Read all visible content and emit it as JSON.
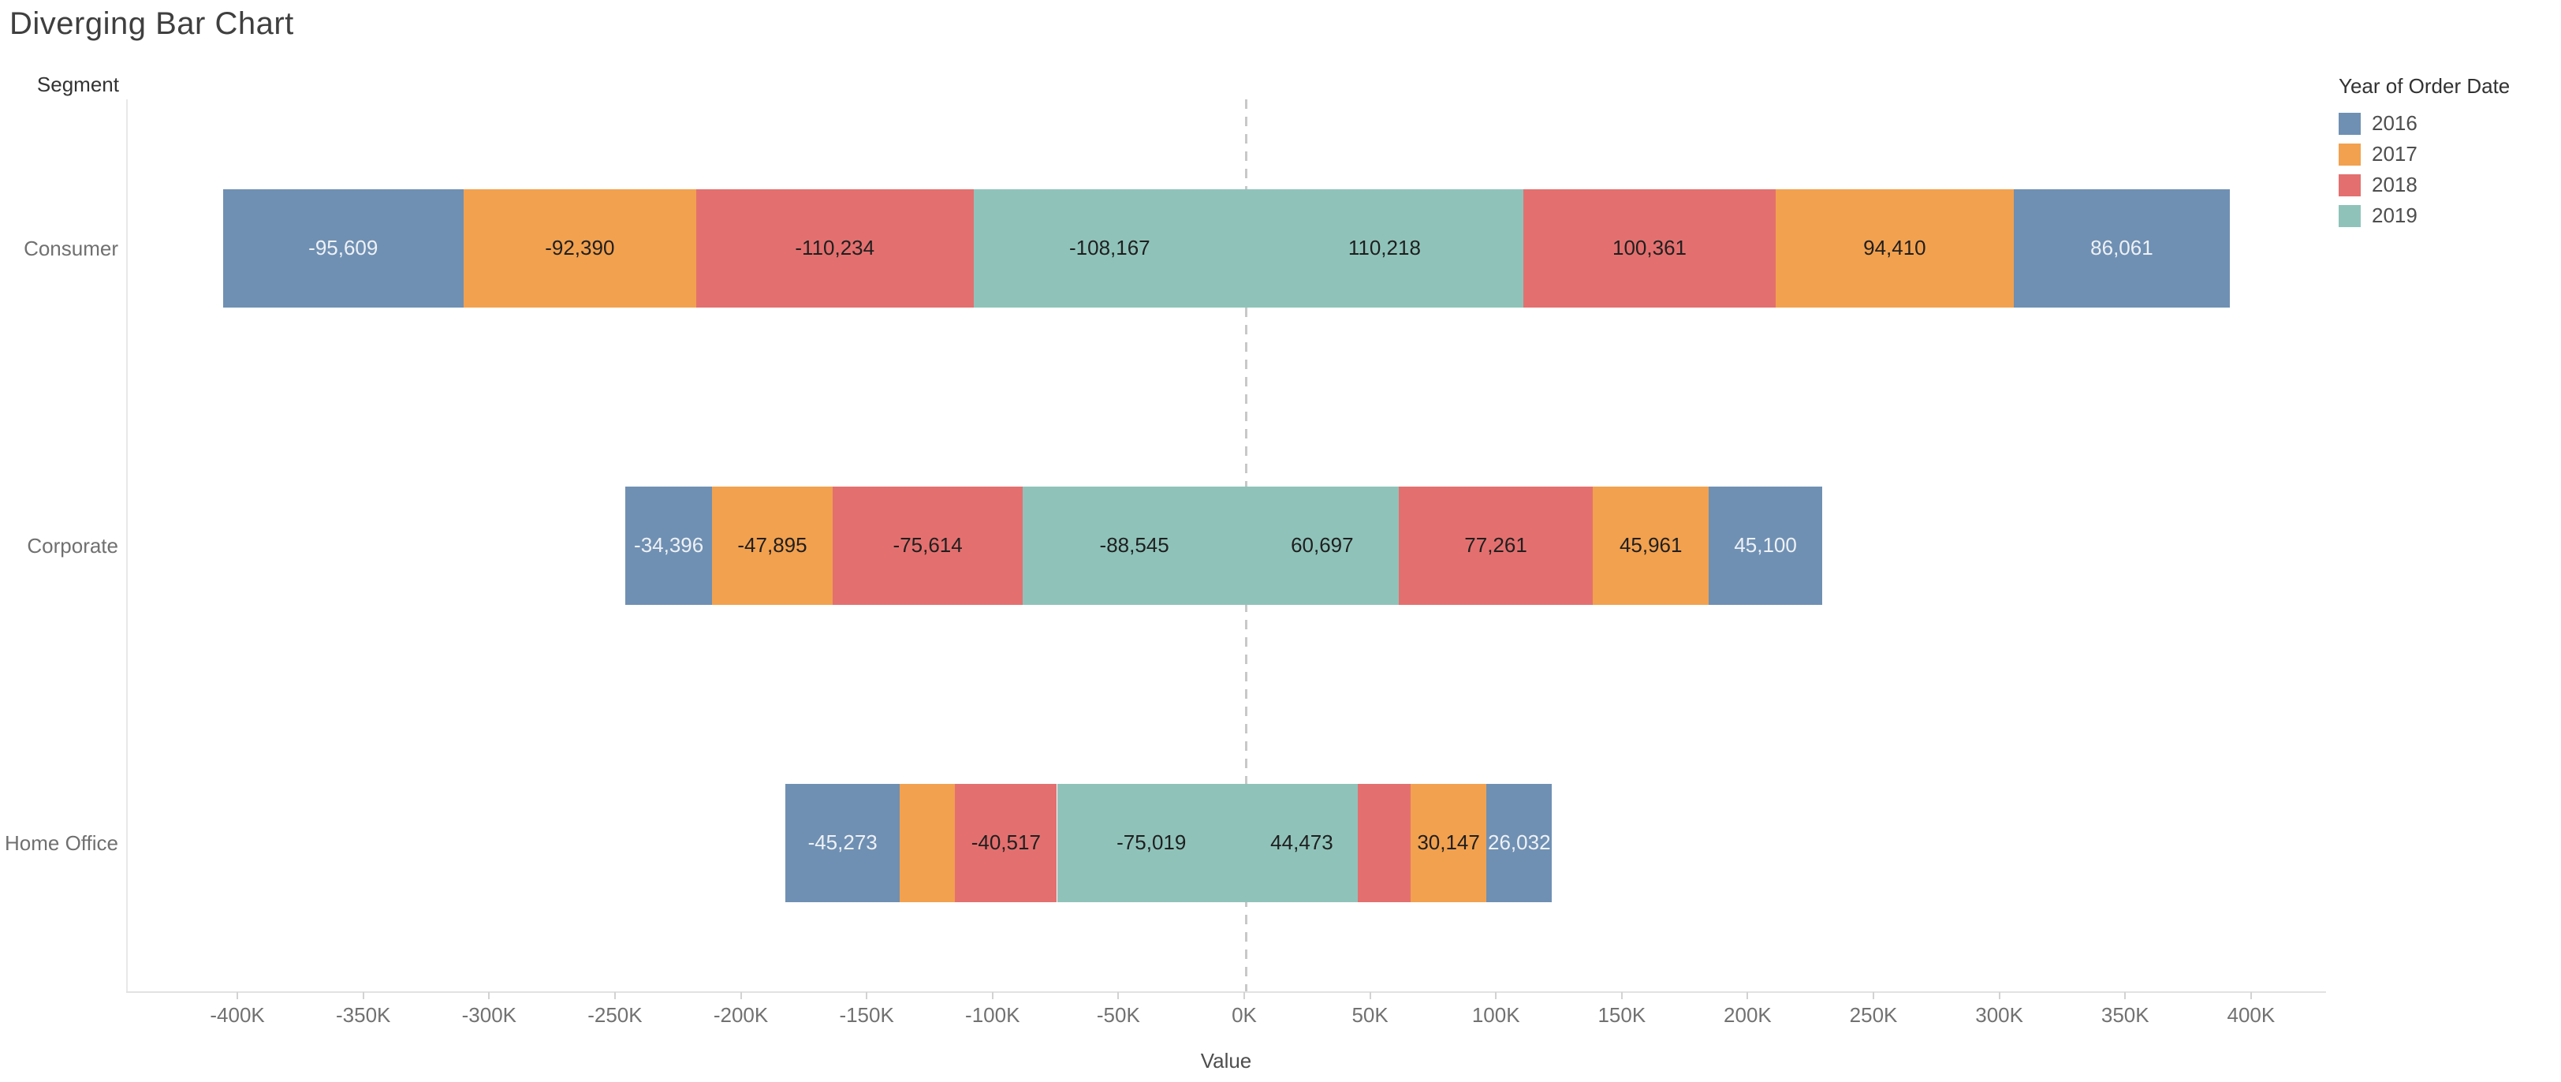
{
  "title": "Diverging Bar Chart",
  "row_axis_header": "Segment",
  "legend": {
    "title": "Year of Order Date",
    "items": [
      {
        "label": "2016",
        "color": "#6f90b3",
        "text_color": "light"
      },
      {
        "label": "2017",
        "color": "#f2a14f",
        "text_color": "dark"
      },
      {
        "label": "2018",
        "color": "#e3706f",
        "text_color": "dark"
      },
      {
        "label": "2019",
        "color": "#8fc3ba",
        "text_color": "dark"
      }
    ]
  },
  "chart_data": {
    "type": "bar",
    "orientation": "horizontal-diverging",
    "title": "Diverging Bar Chart",
    "xlabel": "Value",
    "ylabel": "Segment",
    "legend_position": "top-right",
    "grid": false,
    "axis": {
      "min": -444200,
      "max": 429800,
      "zero_reference_line": true,
      "ticks": [
        {
          "label": "-400K",
          "value": -400000
        },
        {
          "label": "-350K",
          "value": -350000
        },
        {
          "label": "-300K",
          "value": -300000
        },
        {
          "label": "-250K",
          "value": -250000
        },
        {
          "label": "-200K",
          "value": -200000
        },
        {
          "label": "-150K",
          "value": -150000
        },
        {
          "label": "-100K",
          "value": -100000
        },
        {
          "label": "-50K",
          "value": -50000
        },
        {
          "label": "0K",
          "value": 0
        },
        {
          "label": "50K",
          "value": 50000
        },
        {
          "label": "100K",
          "value": 100000
        },
        {
          "label": "150K",
          "value": 150000
        },
        {
          "label": "200K",
          "value": 200000
        },
        {
          "label": "250K",
          "value": 250000
        },
        {
          "label": "300K",
          "value": 300000
        },
        {
          "label": "350K",
          "value": 350000
        },
        {
          "label": "400K",
          "value": 400000
        }
      ]
    },
    "categories": [
      "Consumer",
      "Corporate",
      "Home Office"
    ],
    "rows": [
      {
        "category": "Consumer",
        "segments": [
          {
            "year": "2016",
            "value": -95609,
            "label": "-95,609"
          },
          {
            "year": "2017",
            "value": -92390,
            "label": "-92,390"
          },
          {
            "year": "2018",
            "value": -110234,
            "label": "-110,234"
          },
          {
            "year": "2019",
            "value": -108167,
            "label": "-108,167"
          },
          {
            "year": "2019",
            "value": 110218,
            "label": "110,218"
          },
          {
            "year": "2018",
            "value": 100361,
            "label": "100,361"
          },
          {
            "year": "2017",
            "value": 94410,
            "label": "94,410"
          },
          {
            "year": "2016",
            "value": 86061,
            "label": "86,061"
          }
        ]
      },
      {
        "category": "Corporate",
        "segments": [
          {
            "year": "2016",
            "value": -34396,
            "label": "-34,396"
          },
          {
            "year": "2017",
            "value": -47895,
            "label": "-47,895"
          },
          {
            "year": "2018",
            "value": -75614,
            "label": "-75,614"
          },
          {
            "year": "2019",
            "value": -88545,
            "label": "-88,545"
          },
          {
            "year": "2019",
            "value": 60697,
            "label": "60,697"
          },
          {
            "year": "2018",
            "value": 77261,
            "label": "77,261"
          },
          {
            "year": "2017",
            "value": 45961,
            "label": "45,961"
          },
          {
            "year": "2016",
            "value": 45100,
            "label": "45,100"
          }
        ]
      },
      {
        "category": "Home Office",
        "segments": [
          {
            "year": "2016",
            "value": -45273,
            "label": "-45,273"
          },
          {
            "year": "2017",
            "value": -22000,
            "label": ""
          },
          {
            "year": "2018",
            "value": -40517,
            "label": "-40,517"
          },
          {
            "year": "2019",
            "value": -75019,
            "label": "-75,019"
          },
          {
            "year": "2019",
            "value": 44473,
            "label": "44,473"
          },
          {
            "year": "2018",
            "value": 21000,
            "label": ""
          },
          {
            "year": "2017",
            "value": 30147,
            "label": "30,147"
          },
          {
            "year": "2016",
            "value": 26032,
            "label": "26,032"
          }
        ]
      }
    ]
  }
}
